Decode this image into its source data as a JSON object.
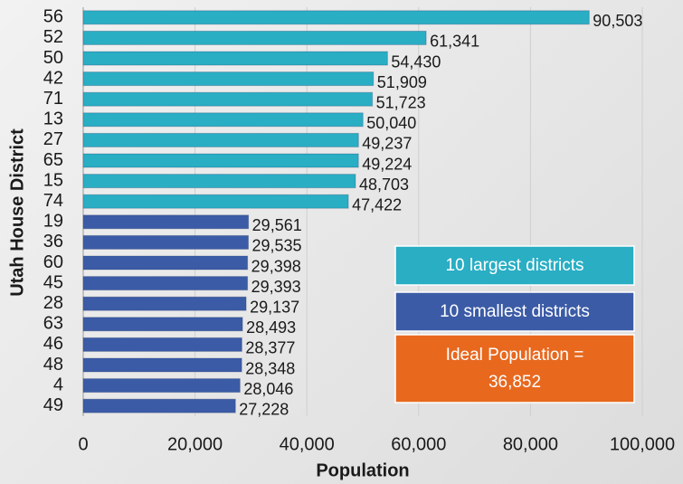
{
  "chart_data": {
    "type": "bar",
    "orientation": "horizontal",
    "categories": [
      "56",
      "52",
      "50",
      "42",
      "71",
      "13",
      "27",
      "65",
      "15",
      "74",
      "19",
      "36",
      "60",
      "45",
      "28",
      "63",
      "46",
      "48",
      "4",
      "49"
    ],
    "series": [
      {
        "name": "10 largest districts",
        "color": "#29aec4",
        "values": [
          90503,
          61341,
          54430,
          51909,
          51723,
          50040,
          49237,
          49224,
          48703,
          47422,
          null,
          null,
          null,
          null,
          null,
          null,
          null,
          null,
          null,
          null
        ],
        "value_labels": [
          "90,503",
          "61,341",
          "54,430",
          "51,909",
          "51,723",
          "50,040",
          "49,237",
          "49,224",
          "48,703",
          "47,422",
          null,
          null,
          null,
          null,
          null,
          null,
          null,
          null,
          null,
          null
        ]
      },
      {
        "name": "10 smallest districts",
        "color": "#3b5ba6",
        "values": [
          null,
          null,
          null,
          null,
          null,
          null,
          null,
          null,
          null,
          null,
          29561,
          29535,
          29398,
          29393,
          29137,
          28493,
          28377,
          28348,
          28046,
          27228
        ],
        "value_labels": [
          null,
          null,
          null,
          null,
          null,
          null,
          null,
          null,
          null,
          null,
          "29,561",
          "29,535",
          "29,398",
          "29,393",
          "29,137",
          "28,493",
          "28,377",
          "28,348",
          "28,046",
          "27,228"
        ]
      }
    ],
    "annotation": {
      "lines": [
        "Ideal Population =",
        "36,852"
      ],
      "color": "#e8681e"
    },
    "x_label": "Population",
    "y_label": "Utah House District",
    "xlim": [
      0,
      100000
    ],
    "xticks": [
      0,
      {
        "value": 20000,
        "label": "20,000"
      },
      {
        "value": 40000,
        "label": "40,000"
      },
      {
        "value": 60000,
        "label": "60,000"
      },
      {
        "value": 80000,
        "label": "80,000"
      },
      {
        "value": 100000,
        "label": "100,000"
      }
    ],
    "grid": true
  }
}
